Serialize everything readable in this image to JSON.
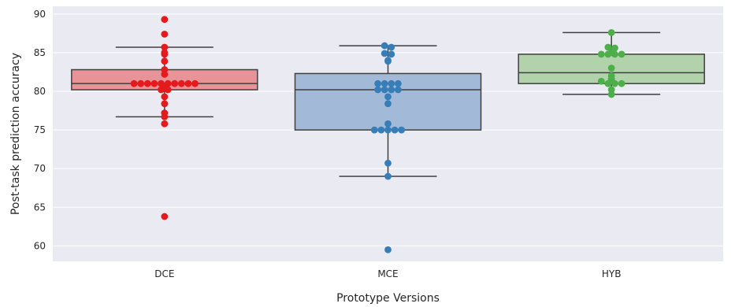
{
  "chart_data": {
    "type": "box",
    "xlabel": "Prototype Versions",
    "ylabel": "Post-task prediction accuracy",
    "ylim": [
      58,
      91
    ],
    "yticks": [
      60,
      65,
      70,
      75,
      80,
      85,
      90
    ],
    "grid": true,
    "background": "#eaeaf2",
    "categories": [
      "DCE",
      "MCE",
      "HYB"
    ],
    "boxes": [
      {
        "category": "DCE",
        "whisker_low": 76.7,
        "q1": 80.2,
        "median": 81.0,
        "q3": 82.8,
        "whisker_high": 85.7,
        "box_color": "#e89397",
        "point_color": "#e41a1c"
      },
      {
        "category": "MCE",
        "whisker_low": 69.0,
        "q1": 75.0,
        "median": 80.2,
        "q3": 82.3,
        "whisker_high": 85.9,
        "box_color": "#a2bad7",
        "point_color": "#377eb8"
      },
      {
        "category": "HYB",
        "whisker_low": 79.6,
        "q1": 81.0,
        "median": 82.4,
        "q3": 84.8,
        "whisker_high": 87.6,
        "box_color": "#b1d2ab",
        "point_color": "#4daf4a"
      }
    ],
    "points": {
      "DCE": [
        89.3,
        87.4,
        85.7,
        85.0,
        84.8,
        83.9,
        82.8,
        82.2,
        81.0,
        81.0,
        81.0,
        81.0,
        81.0,
        81.0,
        81.0,
        81.0,
        81.0,
        81.0,
        80.5,
        80.2,
        80.2,
        79.3,
        78.4,
        77.2,
        76.7,
        75.8,
        63.8
      ],
      "MCE": [
        85.9,
        85.7,
        84.9,
        84.8,
        84.0,
        83.9,
        81.0,
        81.0,
        81.0,
        81.0,
        80.2,
        80.2,
        80.2,
        80.2,
        79.3,
        78.4,
        75.8,
        75.0,
        75.0,
        75.0,
        75.0,
        75.0,
        70.7,
        69.0,
        59.5
      ],
      "HYB": [
        87.6,
        85.7,
        85.6,
        85.0,
        84.8,
        84.8,
        84.8,
        84.8,
        83.0,
        82.0,
        81.6,
        81.3,
        81.0,
        81.0,
        81.0,
        80.2,
        79.6
      ]
    }
  }
}
